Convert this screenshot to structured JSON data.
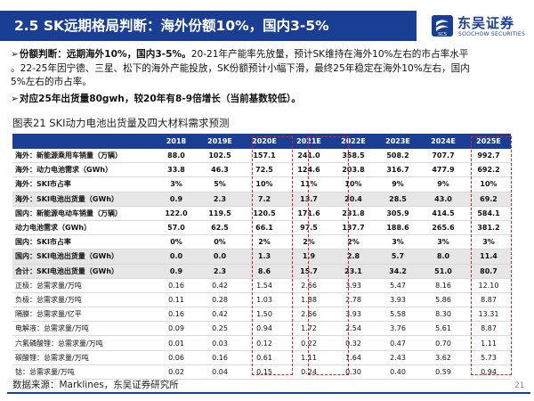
{
  "header": {
    "title": "2.5 SK远期格局判断：海外份额10%，国内3-5%",
    "logo_cn": "东吴证券",
    "logo_en": "SOOCHOW SECURITIES",
    "logo_mark_text": "SCS"
  },
  "bullets": {
    "b1_lead": "份额判断：远期海外10%，国内3-5%。",
    "b1_line1": "20-21年产能率先放量，预计SK维持在海外10%左右的市占率水平",
    "b1_line2": "。22-25年因宁德、三星、松下的海外产能投放，SK份额预计小幅下滑，最终25年稳定在海外10%左右，国内",
    "b1_line3": "5%左右的市占率。",
    "b2": "对应25年出货量80gwh，较20年有8-9倍增长（当前基数较低）。"
  },
  "figure": {
    "caption": "图表21 SKI动力电池出货量及四大材料需求预测"
  },
  "table": {
    "columns": [
      "",
      "2018",
      "2019E",
      "2020E",
      "2021E",
      "2022E",
      "2023E",
      "2024E",
      "2025E"
    ],
    "rows": [
      {
        "label": "海外：新能源乘用车销量（万辆）",
        "values": [
          "88.0",
          "102.5",
          "157.1",
          "241.0",
          "358.5",
          "508.2",
          "707.7",
          "992.7"
        ],
        "bold": true,
        "shade": false
      },
      {
        "label": "海外：动力电池需求（GWh）",
        "values": [
          "33.8",
          "46.3",
          "72.5",
          "124.6",
          "203.8",
          "316.7",
          "477.9",
          "692.2"
        ],
        "bold": true,
        "shade": false
      },
      {
        "label": "海外：SKI市占率",
        "values": [
          "3%",
          "5%",
          "10%",
          "11%",
          "10%",
          "9%",
          "9%",
          "10%"
        ],
        "bold": true,
        "shade": false
      },
      {
        "label": "海外：SKI电池出货量（GWh）",
        "values": [
          "0.9",
          "2.3",
          "7.2",
          "13.7",
          "20.4",
          "28.5",
          "43.0",
          "69.2"
        ],
        "bold": true,
        "shade": true
      },
      {
        "label": "国内：新能源电动车销量（万辆）",
        "values": [
          "122.0",
          "119.5",
          "120.5",
          "171.6",
          "231.8",
          "305.9",
          "414.5",
          "584.1"
        ],
        "bold": true,
        "shade": false
      },
      {
        "label": "动力电池需求（GWh）",
        "values": [
          "57.0",
          "62.5",
          "66.1",
          "97.5",
          "137.7",
          "188.6",
          "265.6",
          "381.2"
        ],
        "bold": true,
        "shade": false
      },
      {
        "label": "国内：SKI市占率",
        "values": [
          "0%",
          "0%",
          "2%",
          "2%",
          "2%",
          "3%",
          "3%",
          "3%"
        ],
        "bold": true,
        "shade": false
      },
      {
        "label": "国内：SKI电池出货量（GWh）",
        "values": [
          "0.0",
          "0.0",
          "1.3",
          "1.9",
          "2.8",
          "5.7",
          "8.0",
          "11.4"
        ],
        "bold": true,
        "shade": true
      },
      {
        "label": "合计：SKI电池出货量（GWh）",
        "values": [
          "0.9",
          "2.3",
          "8.6",
          "15.7",
          "23.1",
          "34.2",
          "51.0",
          "80.7"
        ],
        "bold": true,
        "shade": true
      },
      {
        "label": "正极：总需求量/万吨",
        "values": [
          "0.16",
          "0.42",
          "1.54",
          "2.66",
          "3.93",
          "5.47",
          "8.16",
          "12.10"
        ],
        "bold": false,
        "shade": false
      },
      {
        "label": "负极：总需求量/万吨",
        "values": [
          "0.11",
          "0.28",
          "1.03",
          "1.88",
          "2.78",
          "3.93",
          "5.86",
          "8.87"
        ],
        "bold": false,
        "shade": false
      },
      {
        "label": "隔膜：总需求量/亿平",
        "values": [
          "0.16",
          "0.42",
          "1.50",
          "2.66",
          "3.93",
          "5.58",
          "8.30",
          "13.31"
        ],
        "bold": false,
        "shade": false
      },
      {
        "label": "电解液：总需求量/万吨",
        "values": [
          "0.09",
          "0.25",
          "0.94",
          "1.72",
          "2.54",
          "3.76",
          "5.61",
          "8.87"
        ],
        "bold": false,
        "shade": false
      },
      {
        "label": "六氟磷酸锂：总需求量/万吨",
        "values": [
          "0.01",
          "0.03",
          "0.12",
          "0.22",
          "0.32",
          "0.47",
          "0.70",
          "1.11"
        ],
        "bold": false,
        "shade": false
      },
      {
        "label": "碳酸锂：总需求量/万吨",
        "values": [
          "0.06",
          "0.16",
          "0.61",
          "1.11",
          "1.64",
          "2.43",
          "3.62",
          "5.73"
        ],
        "bold": false,
        "shade": false
      },
      {
        "label": "钴：总需求量/万吨",
        "values": [
          "0.02",
          "0.04",
          "0.15",
          "0.24",
          "0.30",
          "0.40",
          "0.59",
          "0.94"
        ],
        "bold": false,
        "shade": false
      }
    ]
  },
  "footer": {
    "source": "数据来源：Marklines，东吴证券研究所",
    "page_number": "21"
  },
  "colors": {
    "brand_blue": "#1a3e93",
    "highlight_red": "#e02020",
    "shade_gray": "#e6e6e6"
  }
}
